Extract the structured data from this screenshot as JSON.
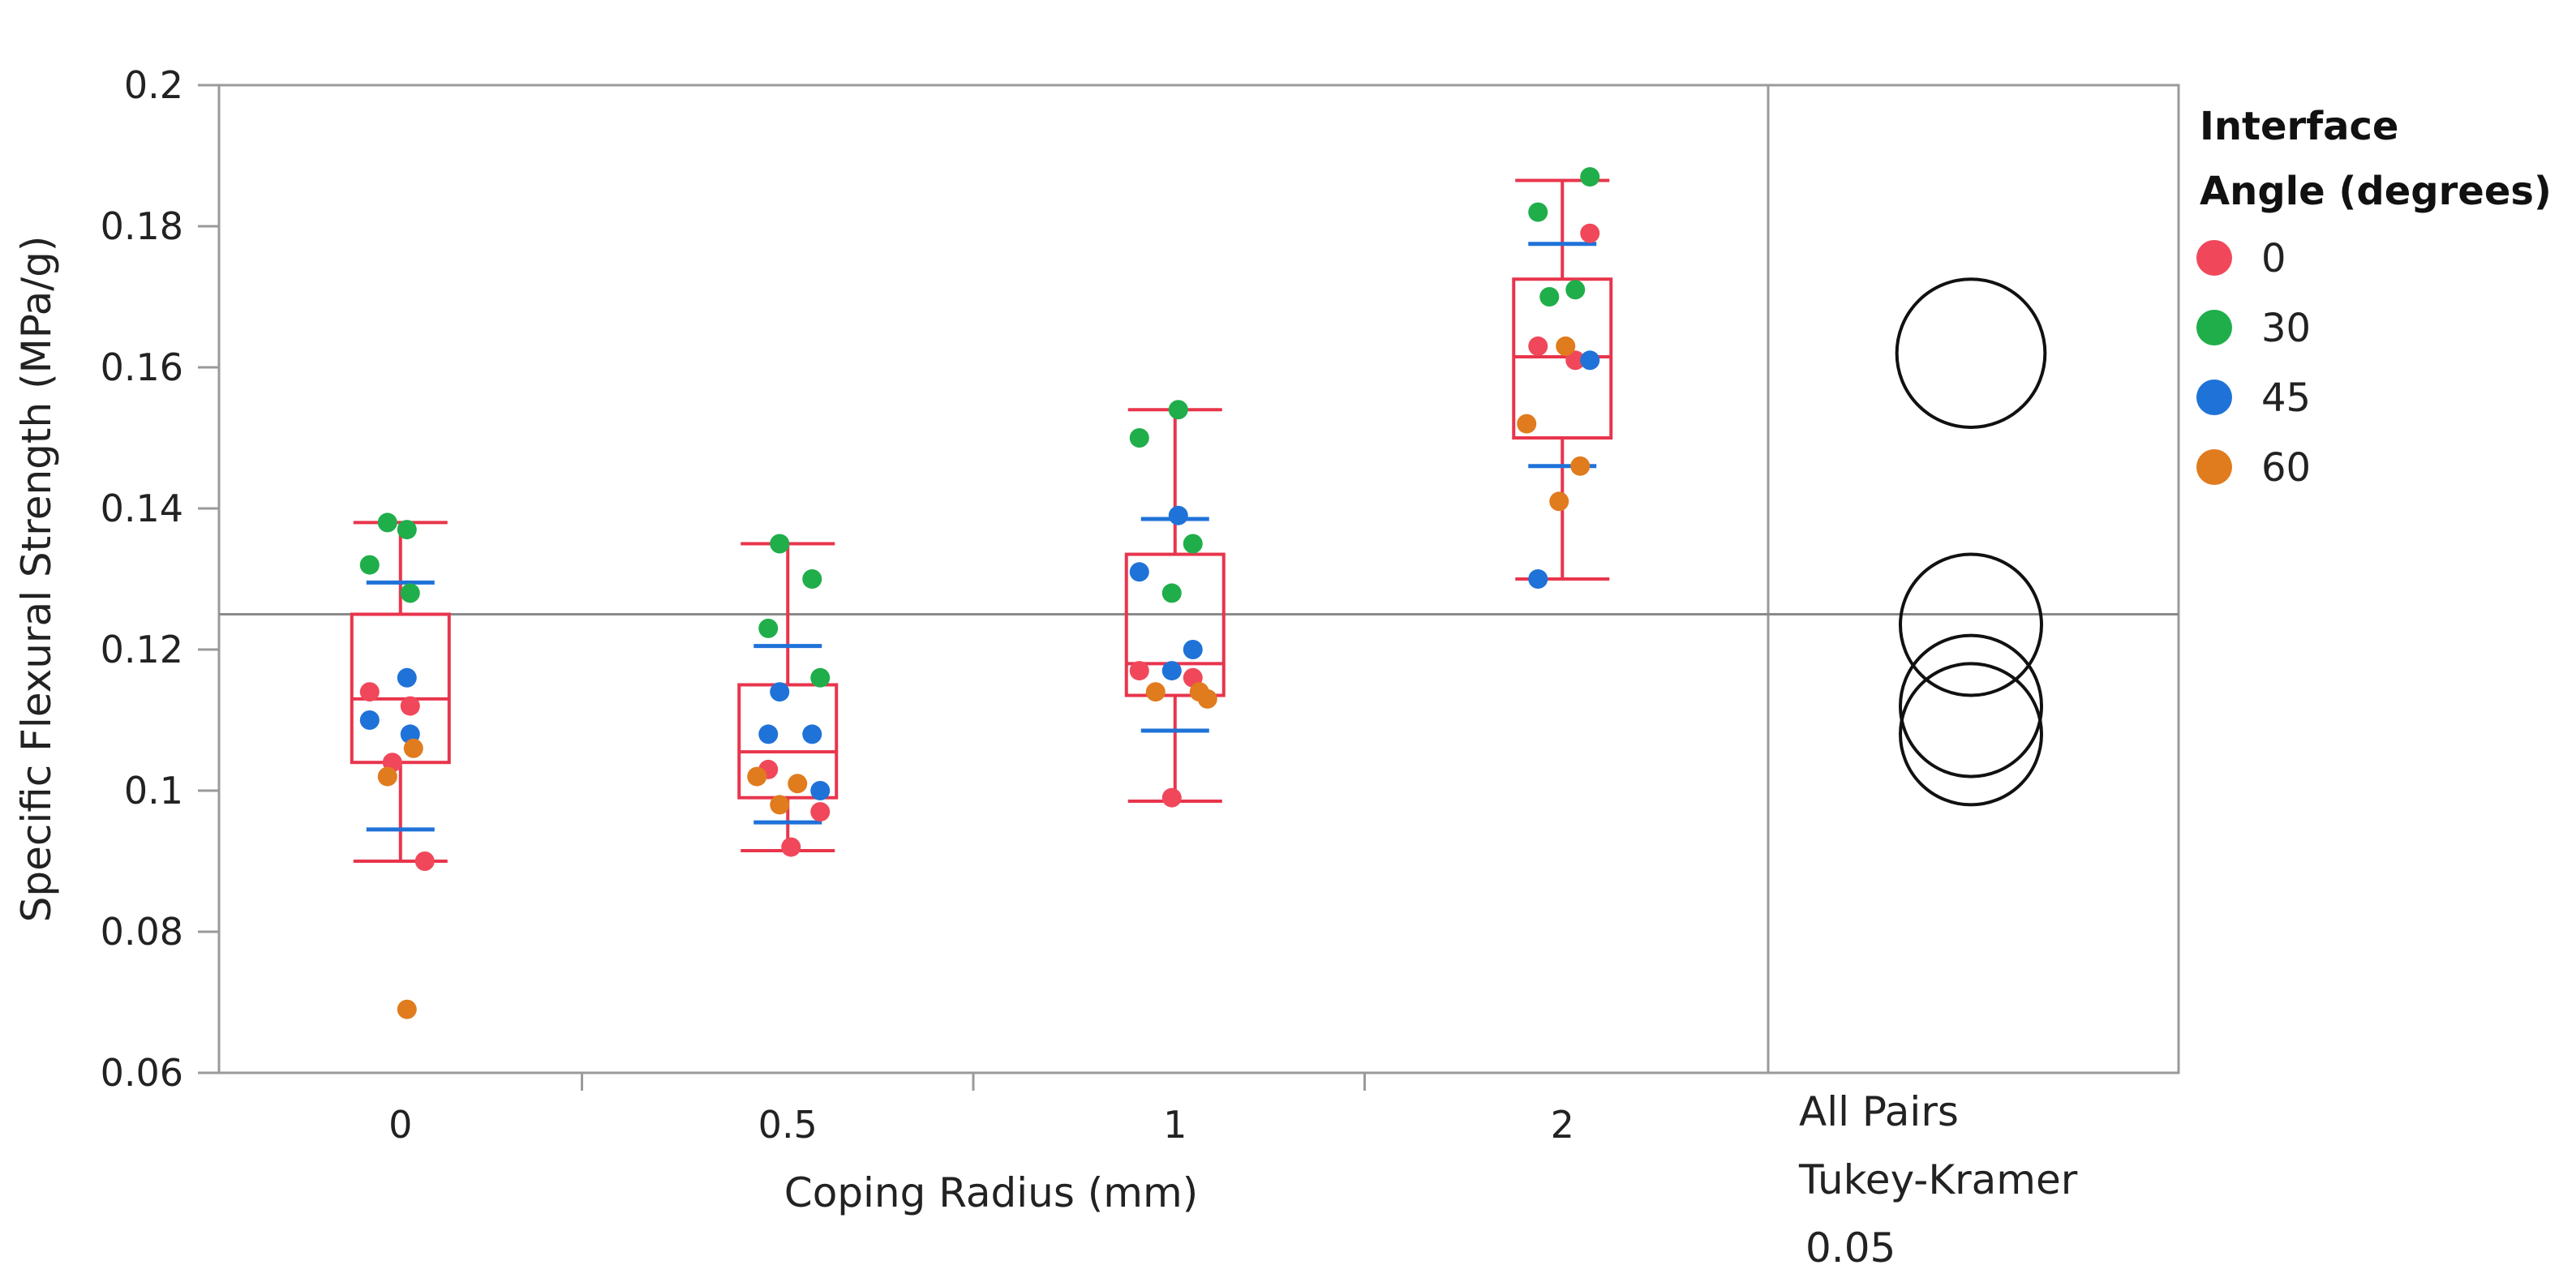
{
  "chart_data": {
    "type": "scatter",
    "subtype": "jitter-box-plot",
    "xlabel": "Coping Radius (mm)",
    "ylabel": "Specific Flexural Strength (MPa/g)",
    "ylim": [
      0.06,
      0.2
    ],
    "yticks": [
      "0.06",
      "0.08",
      "0.1",
      "0.12",
      "0.14",
      "0.16",
      "0.18",
      "0.2"
    ],
    "categories": [
      "0",
      "0.5",
      "1",
      "2"
    ],
    "grand_mean": 0.125,
    "legend": {
      "title_line1": "Interface",
      "title_line2": "Angle (degrees)",
      "position": "right"
    },
    "series": [
      {
        "name": "0",
        "color": "#f0485a",
        "points": [
          {
            "cat": 0,
            "y": 0.114
          },
          {
            "cat": 0,
            "y": 0.112
          },
          {
            "cat": 0,
            "y": 0.104
          },
          {
            "cat": 0,
            "y": 0.09
          },
          {
            "cat": 1,
            "y": 0.103
          },
          {
            "cat": 1,
            "y": 0.097
          },
          {
            "cat": 1,
            "y": 0.092
          },
          {
            "cat": 2,
            "y": 0.117
          },
          {
            "cat": 2,
            "y": 0.116
          },
          {
            "cat": 2,
            "y": 0.099
          },
          {
            "cat": 3,
            "y": 0.179
          },
          {
            "cat": 3,
            "y": 0.163
          },
          {
            "cat": 3,
            "y": 0.161
          }
        ]
      },
      {
        "name": "30",
        "color": "#1fae4a",
        "points": [
          {
            "cat": 0,
            "y": 0.138
          },
          {
            "cat": 0,
            "y": 0.137
          },
          {
            "cat": 0,
            "y": 0.132
          },
          {
            "cat": 0,
            "y": 0.128
          },
          {
            "cat": 1,
            "y": 0.135
          },
          {
            "cat": 1,
            "y": 0.13
          },
          {
            "cat": 1,
            "y": 0.123
          },
          {
            "cat": 1,
            "y": 0.116
          },
          {
            "cat": 2,
            "y": 0.154
          },
          {
            "cat": 2,
            "y": 0.15
          },
          {
            "cat": 2,
            "y": 0.135
          },
          {
            "cat": 2,
            "y": 0.128
          },
          {
            "cat": 3,
            "y": 0.187
          },
          {
            "cat": 3,
            "y": 0.182
          },
          {
            "cat": 3,
            "y": 0.171
          },
          {
            "cat": 3,
            "y": 0.17
          }
        ]
      },
      {
        "name": "45",
        "color": "#1f72d8",
        "points": [
          {
            "cat": 0,
            "y": 0.116
          },
          {
            "cat": 0,
            "y": 0.11
          },
          {
            "cat": 0,
            "y": 0.108
          },
          {
            "cat": 1,
            "y": 0.114
          },
          {
            "cat": 1,
            "y": 0.108
          },
          {
            "cat": 1,
            "y": 0.108
          },
          {
            "cat": 1,
            "y": 0.1
          },
          {
            "cat": 2,
            "y": 0.139
          },
          {
            "cat": 2,
            "y": 0.131
          },
          {
            "cat": 2,
            "y": 0.12
          },
          {
            "cat": 2,
            "y": 0.117
          },
          {
            "cat": 3,
            "y": 0.161
          },
          {
            "cat": 3,
            "y": 0.13
          }
        ]
      },
      {
        "name": "60",
        "color": "#e07b1e",
        "points": [
          {
            "cat": 0,
            "y": 0.106
          },
          {
            "cat": 0,
            "y": 0.102
          },
          {
            "cat": 0,
            "y": 0.069
          },
          {
            "cat": 1,
            "y": 0.102
          },
          {
            "cat": 1,
            "y": 0.101
          },
          {
            "cat": 1,
            "y": 0.098
          },
          {
            "cat": 2,
            "y": 0.114
          },
          {
            "cat": 2,
            "y": 0.114
          },
          {
            "cat": 2,
            "y": 0.113
          },
          {
            "cat": 3,
            "y": 0.163
          },
          {
            "cat": 3,
            "y": 0.152
          },
          {
            "cat": 3,
            "y": 0.146
          },
          {
            "cat": 3,
            "y": 0.141
          }
        ]
      }
    ],
    "box_color": "#e8354c",
    "boxes": [
      {
        "cat": 0,
        "q1": 0.104,
        "median": 0.113,
        "q3": 0.125,
        "whisker_low": 0.09,
        "whisker_high": 0.138
      },
      {
        "cat": 1,
        "q1": 0.099,
        "median": 0.1055,
        "q3": 0.115,
        "whisker_low": 0.0915,
        "whisker_high": 0.135
      },
      {
        "cat": 2,
        "q1": 0.1135,
        "median": 0.118,
        "q3": 0.1335,
        "whisker_low": 0.0985,
        "whisker_high": 0.154
      },
      {
        "cat": 3,
        "q1": 0.15,
        "median": 0.1615,
        "q3": 0.1725,
        "whisker_low": 0.13,
        "whisker_high": 0.1865
      }
    ],
    "sd_color": "#1f72d8",
    "sd_marks": [
      {
        "cat": 0,
        "low": 0.0945,
        "high": 0.1295
      },
      {
        "cat": 1,
        "low": 0.0955,
        "high": 0.1205
      },
      {
        "cat": 2,
        "low": 0.1085,
        "high": 0.1385
      },
      {
        "cat": 3,
        "low": 0.146,
        "high": 0.1775
      }
    ],
    "comparison_circles": {
      "label_line1": "All Pairs",
      "label_line2": "Tukey-Kramer",
      "label_line3": "0.05",
      "circles": [
        {
          "center": 0.162,
          "radius": 0.0105
        },
        {
          "center": 0.1235,
          "radius": 0.01
        },
        {
          "center": 0.112,
          "radius": 0.01
        },
        {
          "center": 0.108,
          "radius": 0.01
        }
      ]
    }
  }
}
